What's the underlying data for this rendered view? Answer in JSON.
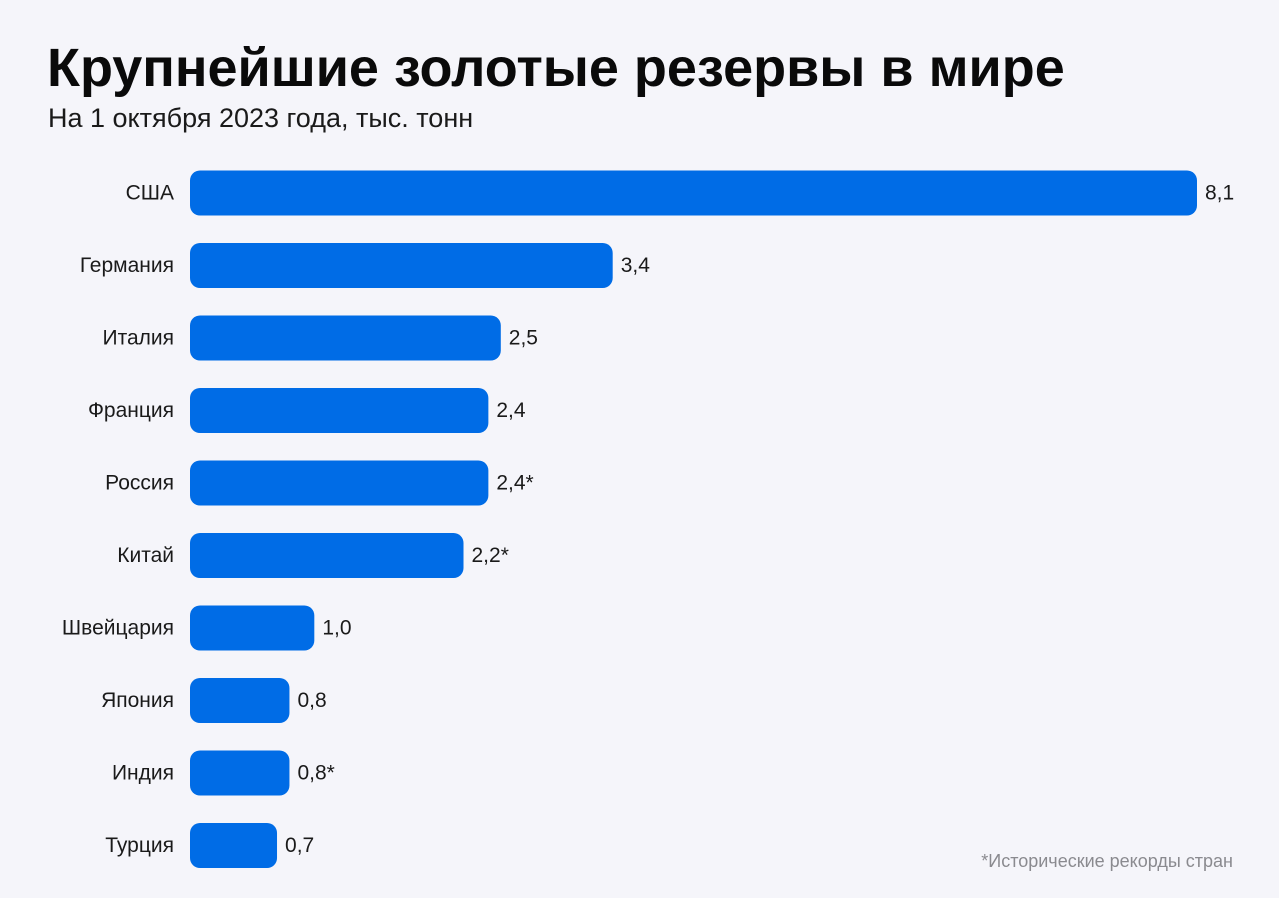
{
  "header": {
    "title": "Крупнейшие золотые резервы в мире",
    "subtitle": "На 1 октября 2023 года, тыс. тонн"
  },
  "footnote": "*Исторические рекорды стран",
  "colors": {
    "bar": "#006ce6",
    "background": "#f5f5fa"
  },
  "chart_data": {
    "type": "bar",
    "orientation": "horizontal",
    "title": "Крупнейшие золотые резервы в мире",
    "subtitle": "На 1 октября 2023 года, тыс. тонн",
    "xlabel": "",
    "ylabel": "",
    "xlim": [
      0,
      8.1
    ],
    "grid": false,
    "categories": [
      "США",
      "Германия",
      "Италия",
      "Франция",
      "Россия",
      "Китай",
      "Швейцария",
      "Япония",
      "Индия",
      "Турция"
    ],
    "values": [
      8.1,
      3.4,
      2.5,
      2.4,
      2.4,
      2.2,
      1.0,
      0.8,
      0.8,
      0.7
    ],
    "value_labels": [
      "8,1",
      "3,4",
      "2,5",
      "2,4",
      "2,4*",
      "2,2*",
      "1,0",
      "0,8",
      "0,8*",
      "0,7"
    ]
  }
}
